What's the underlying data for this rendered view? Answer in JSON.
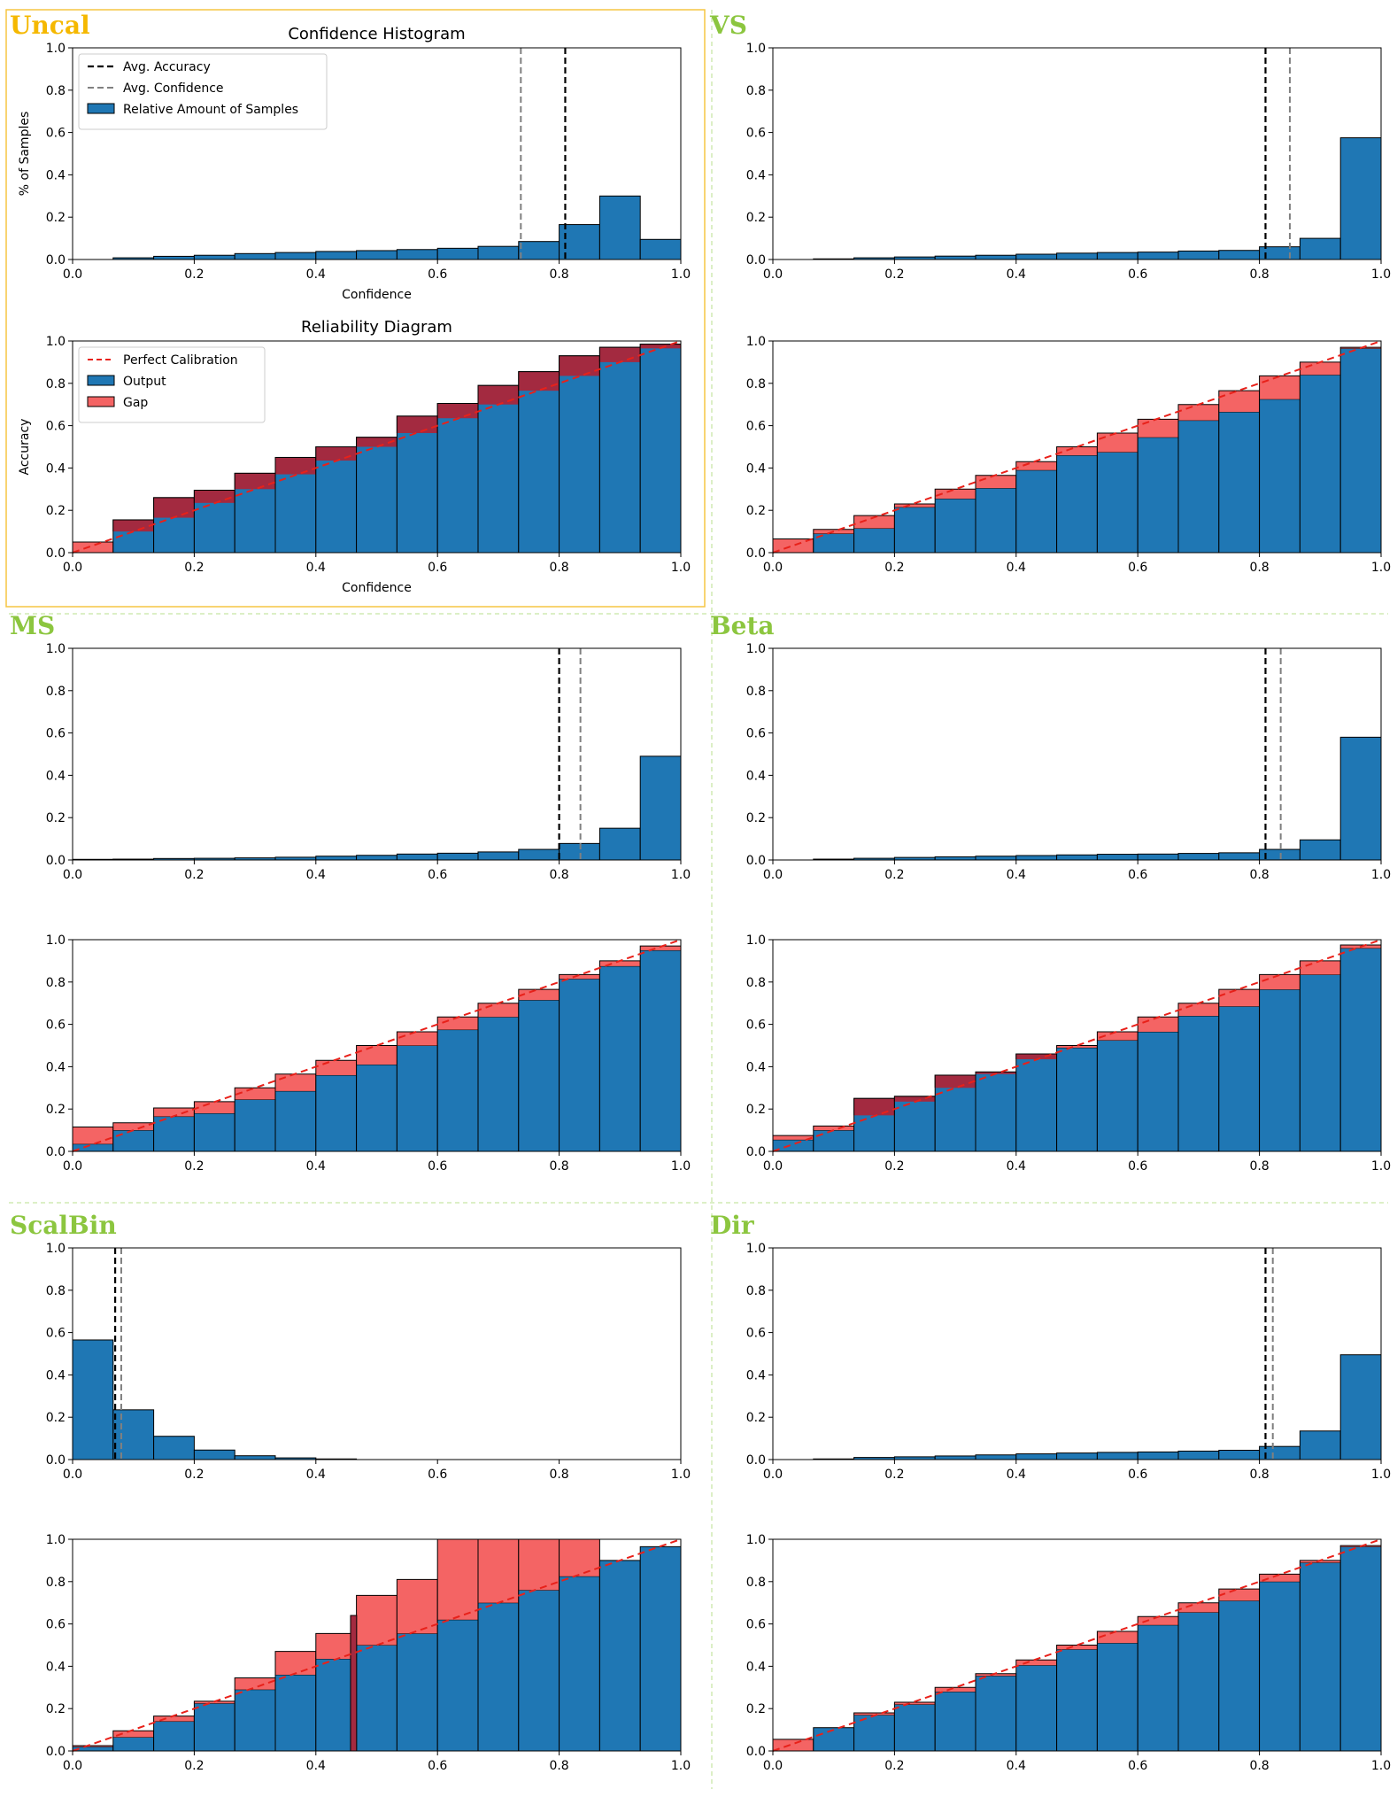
{
  "colors": {
    "output": "#1f77b4",
    "gap_over": "#a32a40",
    "gap_under": "#f46464",
    "perfect": "#e8211a",
    "avg_acc": "#000000",
    "avg_conf": "#808080",
    "uncal_title": "#f5b800",
    "method_title": "#8cc63f",
    "uncal_border": "#f5c542",
    "separator": "#b9df8e"
  },
  "labels": {
    "hist_title": "Confidence Histogram",
    "rel_title": "Reliability Diagram",
    "xlabel": "Confidence",
    "hist_ylabel": "% of Samples",
    "rel_ylabel": "Accuracy"
  },
  "legends": {
    "hist": [
      "Avg. Accuracy",
      "Avg. Confidence",
      "Relative Amount of Samples"
    ],
    "rel": [
      "Perfect Calibration",
      "Output",
      "Gap"
    ]
  },
  "chart_data": [
    {
      "method": "Uncal",
      "type": "bar",
      "bins": 15,
      "xlim": [
        0,
        1
      ],
      "ylim": [
        0,
        1
      ],
      "ticks": [
        "0.0",
        "0.2",
        "0.4",
        "0.6",
        "0.8",
        "1.0"
      ],
      "histogram": [
        0,
        0.008,
        0.015,
        0.02,
        0.028,
        0.033,
        0.038,
        0.042,
        0.047,
        0.053,
        0.062,
        0.085,
        0.165,
        0.3,
        0.095
      ],
      "avg_accuracy": 0.81,
      "avg_confidence": 0.737,
      "accuracy": [
        0,
        0.155,
        0.26,
        0.295,
        0.375,
        0.45,
        0.5,
        0.545,
        0.645,
        0.705,
        0.79,
        0.855,
        0.93,
        0.97,
        0.985
      ],
      "output": [
        0.05,
        0.1,
        0.165,
        0.235,
        0.3,
        0.37,
        0.435,
        0.5,
        0.565,
        0.635,
        0.7,
        0.765,
        0.835,
        0.9,
        0.965
      ]
    },
    {
      "method": "VS",
      "type": "bar",
      "bins": 15,
      "xlim": [
        0,
        1
      ],
      "ylim": [
        0,
        1
      ],
      "ticks": [
        "0.0",
        "0.2",
        "0.4",
        "0.6",
        "0.8",
        "1.0"
      ],
      "histogram": [
        0,
        0.003,
        0.008,
        0.012,
        0.016,
        0.02,
        0.025,
        0.03,
        0.033,
        0.035,
        0.04,
        0.043,
        0.06,
        0.1,
        0.575
      ],
      "avg_accuracy": 0.81,
      "avg_confidence": 0.85,
      "accuracy": [
        0,
        0.09,
        0.115,
        0.215,
        0.255,
        0.305,
        0.39,
        0.46,
        0.475,
        0.545,
        0.625,
        0.665,
        0.725,
        0.84,
        0.965
      ],
      "output": [
        0.065,
        0.11,
        0.175,
        0.23,
        0.3,
        0.365,
        0.43,
        0.5,
        0.565,
        0.63,
        0.7,
        0.765,
        0.835,
        0.9,
        0.97
      ]
    },
    {
      "method": "MS",
      "type": "bar",
      "bins": 15,
      "xlim": [
        0,
        1
      ],
      "ylim": [
        0,
        1
      ],
      "ticks": [
        "0.0",
        "0.2",
        "0.4",
        "0.6",
        "0.8",
        "1.0"
      ],
      "histogram": [
        0.003,
        0.004,
        0.007,
        0.008,
        0.01,
        0.013,
        0.018,
        0.022,
        0.028,
        0.032,
        0.038,
        0.05,
        0.078,
        0.15,
        0.49
      ],
      "avg_accuracy": 0.8,
      "avg_confidence": 0.835,
      "accuracy": [
        0.035,
        0.1,
        0.165,
        0.18,
        0.245,
        0.285,
        0.36,
        0.41,
        0.5,
        0.575,
        0.635,
        0.715,
        0.815,
        0.875,
        0.95
      ],
      "output": [
        0.115,
        0.135,
        0.205,
        0.235,
        0.3,
        0.365,
        0.43,
        0.5,
        0.565,
        0.635,
        0.7,
        0.765,
        0.835,
        0.9,
        0.97
      ]
    },
    {
      "method": "Beta",
      "type": "bar",
      "bins": 15,
      "xlim": [
        0,
        1
      ],
      "ylim": [
        0,
        1
      ],
      "ticks": [
        "0.0",
        "0.2",
        "0.4",
        "0.6",
        "0.8",
        "1.0"
      ],
      "histogram": [
        0,
        0.004,
        0.008,
        0.012,
        0.015,
        0.018,
        0.021,
        0.024,
        0.027,
        0.028,
        0.031,
        0.034,
        0.05,
        0.095,
        0.58
      ],
      "avg_accuracy": 0.81,
      "avg_confidence": 0.835,
      "accuracy": [
        0.055,
        0.1,
        0.25,
        0.26,
        0.36,
        0.375,
        0.46,
        0.49,
        0.525,
        0.565,
        0.64,
        0.685,
        0.765,
        0.835,
        0.96
      ],
      "output": [
        0.075,
        0.12,
        0.17,
        0.235,
        0.3,
        0.365,
        0.435,
        0.5,
        0.565,
        0.635,
        0.7,
        0.765,
        0.835,
        0.9,
        0.975
      ]
    },
    {
      "method": "ScalBin",
      "type": "bar",
      "bins": 15,
      "xlim": [
        0,
        1
      ],
      "ylim": [
        0,
        1
      ],
      "ticks": [
        "0.0",
        "0.2",
        "0.4",
        "0.6",
        "0.8",
        "1.0"
      ],
      "histogram": [
        0.565,
        0.235,
        0.11,
        0.045,
        0.018,
        0.008,
        0.003,
        0,
        0,
        0,
        0,
        0,
        0,
        0,
        0
      ],
      "avg_accuracy": 0.07,
      "avg_confidence": 0.08,
      "accuracy": [
        0.02,
        0.065,
        0.14,
        0.225,
        0.29,
        0.36,
        0.435,
        0.5,
        0.555,
        0.62,
        0.7,
        0.76,
        0.825,
        0.9,
        0.965
      ],
      "output": [
        0.025,
        0.095,
        0.165,
        0.235,
        0.345,
        0.47,
        0.555,
        0.735,
        0.81,
        1.0,
        1.0,
        1.0,
        1.0,
        0.9,
        0.965
      ],
      "extra_bar": {
        "start": 0.457,
        "end": 0.467,
        "value": 0.64
      }
    },
    {
      "method": "Dir",
      "type": "bar",
      "bins": 15,
      "xlim": [
        0,
        1
      ],
      "ylim": [
        0,
        1
      ],
      "ticks": [
        "0.0",
        "0.2",
        "0.4",
        "0.6",
        "0.8",
        "1.0"
      ],
      "histogram": [
        0,
        0.003,
        0.01,
        0.013,
        0.017,
        0.022,
        0.027,
        0.031,
        0.034,
        0.036,
        0.04,
        0.044,
        0.062,
        0.135,
        0.495
      ],
      "avg_accuracy": 0.81,
      "avg_confidence": 0.822,
      "accuracy": [
        0,
        0.11,
        0.17,
        0.22,
        0.28,
        0.355,
        0.405,
        0.48,
        0.51,
        0.595,
        0.655,
        0.71,
        0.8,
        0.89,
        0.965
      ],
      "output": [
        0.055,
        0.11,
        0.18,
        0.23,
        0.3,
        0.365,
        0.43,
        0.5,
        0.565,
        0.635,
        0.7,
        0.765,
        0.835,
        0.9,
        0.97
      ]
    }
  ]
}
